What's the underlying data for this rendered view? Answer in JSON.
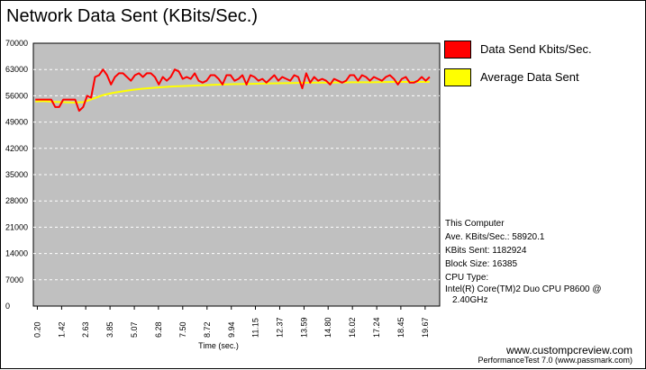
{
  "window": {
    "title": "Network Data Sent (KBits/Sec.)"
  },
  "chart_data": {
    "type": "line",
    "xlabel": "Time (sec.)",
    "ylabel": "",
    "ylim": [
      0,
      70000
    ],
    "yticks": [
      0,
      7000,
      14000,
      21000,
      28000,
      35000,
      42000,
      49000,
      56000,
      63000,
      70000
    ],
    "xlim": [
      0,
      20.4
    ],
    "xticks": [
      "0.20",
      "1.42",
      "2.63",
      "3.85",
      "5.07",
      "6.28",
      "7.50",
      "8.72",
      "9.94",
      "11.15",
      "12.37",
      "13.59",
      "14.80",
      "16.02",
      "17.24",
      "18.45",
      "19.67"
    ],
    "grid": true,
    "legend_position": "right",
    "series": [
      {
        "name": "Data Send Kbits/Sec.",
        "color": "#ff0000",
        "x": [
          0.1,
          0.5,
          0.9,
          1.1,
          1.3,
          1.5,
          1.9,
          2.1,
          2.3,
          2.5,
          2.7,
          2.9,
          3.1,
          3.3,
          3.5,
          3.7,
          3.9,
          4.1,
          4.3,
          4.5,
          4.7,
          4.9,
          5.1,
          5.3,
          5.5,
          5.7,
          5.9,
          6.1,
          6.3,
          6.5,
          6.7,
          6.9,
          7.1,
          7.3,
          7.5,
          7.7,
          7.9,
          8.1,
          8.3,
          8.5,
          8.7,
          8.9,
          9.1,
          9.3,
          9.5,
          9.7,
          9.9,
          10.1,
          10.3,
          10.5,
          10.7,
          10.9,
          11.1,
          11.3,
          11.5,
          11.7,
          11.9,
          12.1,
          12.3,
          12.5,
          12.7,
          12.9,
          13.1,
          13.3,
          13.5,
          13.7,
          13.9,
          14.1,
          14.3,
          14.5,
          14.7,
          14.9,
          15.1,
          15.3,
          15.5,
          15.7,
          15.9,
          16.1,
          16.3,
          16.5,
          16.7,
          16.9,
          17.1,
          17.3,
          17.5,
          17.7,
          17.9,
          18.1,
          18.3,
          18.5,
          18.7,
          18.9,
          19.1,
          19.3,
          19.5,
          19.7,
          19.9
        ],
        "values": [
          55000,
          55000,
          55000,
          53000,
          53000,
          55000,
          55000,
          55000,
          52000,
          53000,
          56000,
          55500,
          61000,
          61500,
          63000,
          61500,
          59000,
          61000,
          62000,
          62000,
          61000,
          60000,
          61500,
          62000,
          61000,
          62000,
          62000,
          61000,
          59000,
          61000,
          60000,
          61000,
          63000,
          62500,
          60500,
          61000,
          60500,
          62000,
          60000,
          59500,
          60000,
          61500,
          61500,
          60500,
          59000,
          61500,
          61500,
          60000,
          60500,
          61500,
          59000,
          61500,
          61000,
          60000,
          60500,
          59500,
          60500,
          61500,
          60000,
          61000,
          60500,
          60000,
          61500,
          61000,
          58000,
          62000,
          59500,
          61000,
          60000,
          60500,
          60000,
          59000,
          60500,
          60000,
          59500,
          60000,
          61500,
          61500,
          60000,
          61500,
          61000,
          60000,
          61000,
          60500,
          60000,
          61000,
          61500,
          60500,
          59000,
          60500,
          61000,
          59500,
          59500,
          60000,
          61000,
          60000,
          61000
        ]
      },
      {
        "name": "Average Data Sent",
        "color": "#ffff00",
        "x": [
          0.1,
          0.5,
          1.0,
          1.5,
          2.0,
          2.5,
          3.0,
          3.5,
          4.0,
          4.5,
          5.0,
          5.5,
          6.0,
          6.5,
          7.0,
          7.5,
          8.0,
          9.0,
          10.0,
          11.0,
          12.0,
          13.0,
          14.0,
          15.0,
          16.0,
          17.0,
          18.0,
          19.0,
          19.9
        ],
        "values": [
          54500,
          54600,
          54400,
          54300,
          54200,
          54300,
          55200,
          56200,
          56800,
          57200,
          57600,
          57900,
          58100,
          58300,
          58500,
          58600,
          58700,
          58900,
          59100,
          59200,
          59300,
          59400,
          59500,
          59500,
          59600,
          59600,
          59700,
          59700,
          59700
        ]
      }
    ]
  },
  "info": {
    "line1": "This Computer",
    "line2": "Ave. KBits/Sec.: 58920.1",
    "line3": "KBits Sent: 1182924",
    "line4": "Block Size: 16385",
    "line5": "CPU Type:",
    "line6": "Intel(R) Core(TM)2 Duo CPU P8600 @",
    "line7": "2.40GHz"
  },
  "footer": {
    "site": "www.custompcreview.com",
    "tool": "PerformanceTest 7.0 (www.passmark.com)"
  }
}
